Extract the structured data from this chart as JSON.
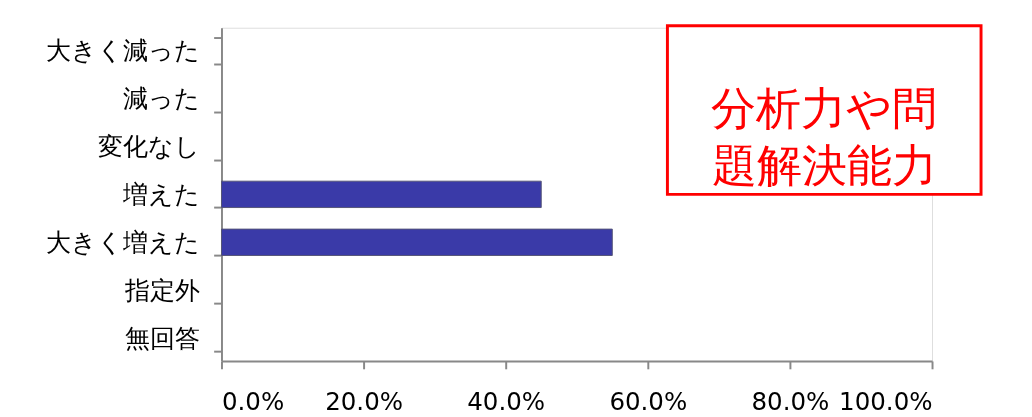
{
  "chart_data": {
    "type": "bar",
    "orientation": "horizontal",
    "categories": [
      "大きく減った",
      "減った",
      "変化なし",
      "増えた",
      "大きく増えた",
      "指定外",
      "無回答"
    ],
    "values": [
      null,
      null,
      null,
      45,
      55,
      null,
      null
    ],
    "color": "#3a3aa8",
    "xlim": [
      0,
      100
    ],
    "xticks": [
      {
        "value": 0,
        "label": "0.0%"
      },
      {
        "value": 20,
        "label": "20.0%"
      },
      {
        "value": 40,
        "label": "40.0%"
      },
      {
        "value": 60,
        "label": "60.0%"
      },
      {
        "value": 80,
        "label": "80.0%"
      },
      {
        "value": 100,
        "label": "100.0%"
      }
    ],
    "grid": false,
    "annotations": [
      "分析力や問題解決能力"
    ]
  }
}
